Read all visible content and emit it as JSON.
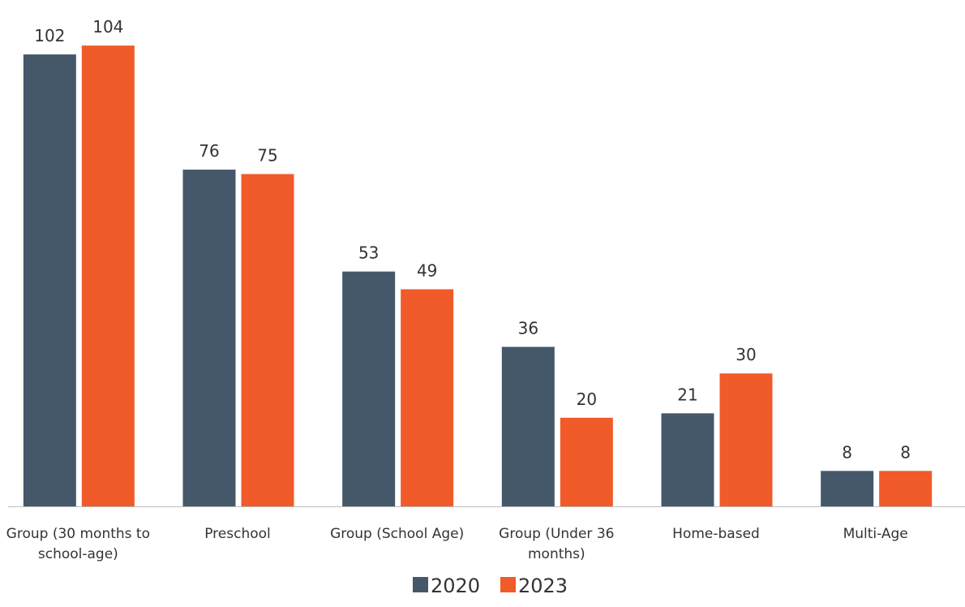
{
  "chart_data": {
    "type": "bar",
    "categories": [
      [
        "Group (30 months to",
        "school-age)"
      ],
      [
        "Preschool"
      ],
      [
        "Group (School Age)"
      ],
      [
        "Group (Under 36",
        "months)"
      ],
      [
        "Home-based"
      ],
      [
        "Multi-Age"
      ]
    ],
    "series": [
      {
        "name": "2020",
        "values": [
          102,
          76,
          53,
          36,
          21,
          8
        ],
        "color": "#44586a"
      },
      {
        "name": "2023",
        "values": [
          104,
          75,
          49,
          20,
          30,
          8
        ],
        "color": "#f15a29"
      }
    ],
    "ylim": [
      0,
      110
    ],
    "grid": false,
    "legend_position": "bottom-center",
    "data_labels": true
  }
}
